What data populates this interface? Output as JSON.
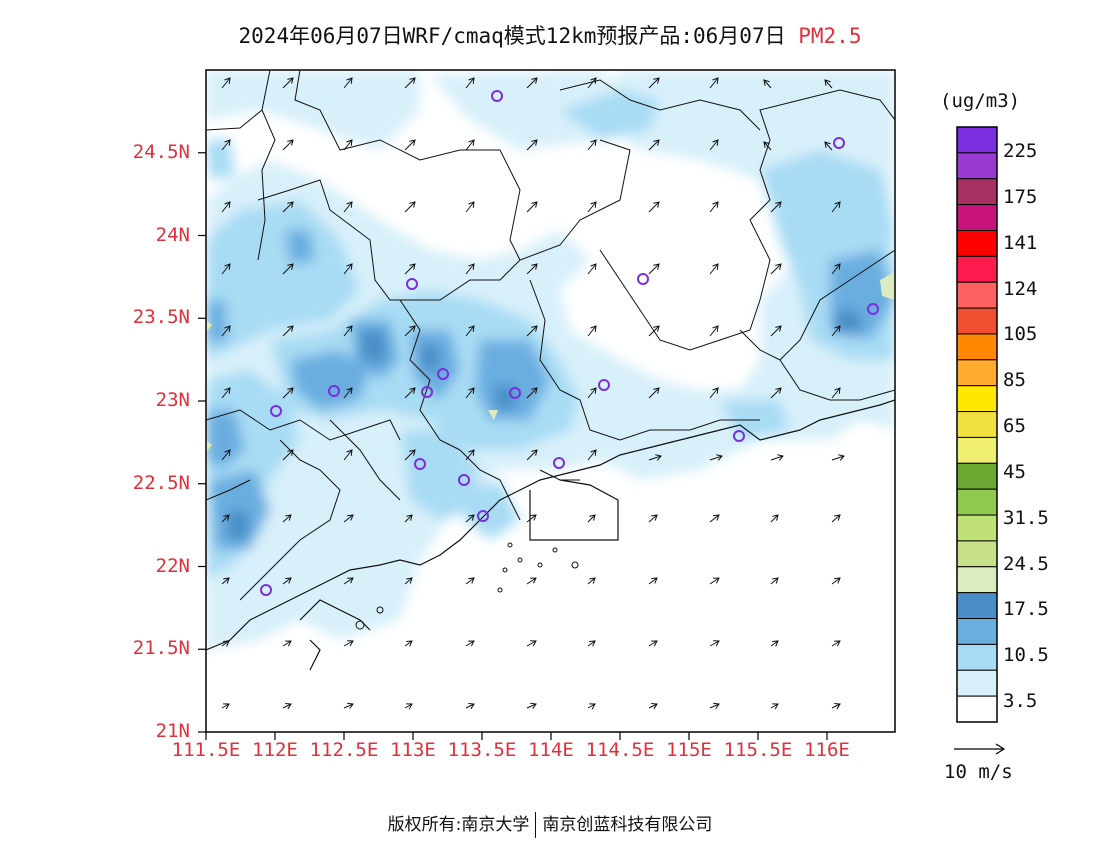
{
  "title": {
    "text": "2024年06月07日WRF/cmaq模式12km预报产品:06月07日",
    "species": "PM2.5"
  },
  "map": {
    "lat_labels": [
      "24.5N",
      "24N",
      "23.5N",
      "23N",
      "22.5N",
      "22N",
      "21.5N",
      "21N"
    ],
    "lon_labels": [
      "111.5E",
      "112E",
      "112.5E",
      "113E",
      "113.5E",
      "114E",
      "114.5E",
      "115E",
      "115.5E",
      "116E"
    ],
    "lat_range": [
      21.0,
      25.0
    ],
    "lon_range": [
      111.5,
      116.5
    ]
  },
  "legend": {
    "units": "(ug/m3)",
    "labels": [
      "225",
      "175",
      "141",
      "124",
      "105",
      "85",
      "65",
      "45",
      "31.5",
      "24.5",
      "17.5",
      "10.5",
      "3.5"
    ],
    "colors": [
      "#7b2ee0",
      "#9b3ad0",
      "#a63060",
      "#c8147a",
      "#ff0000",
      "#ff1a50",
      "#ff6060",
      "#f05030",
      "#ff8800",
      "#ffaa30",
      "#ffe800",
      "#f0e040",
      "#f0f070",
      "#6aa832",
      "#90c850",
      "#c0e078",
      "#c8e088",
      "#dcecc0",
      "#4a8ec8",
      "#6aaee0",
      "#a8dcf4",
      "#d8f0fa",
      "#ffffff"
    ]
  },
  "wind": {
    "scale_label": "10 m/s"
  },
  "footer": {
    "left": "版权所有:南京大学",
    "right": "南京创蓝科技有限公司"
  }
}
